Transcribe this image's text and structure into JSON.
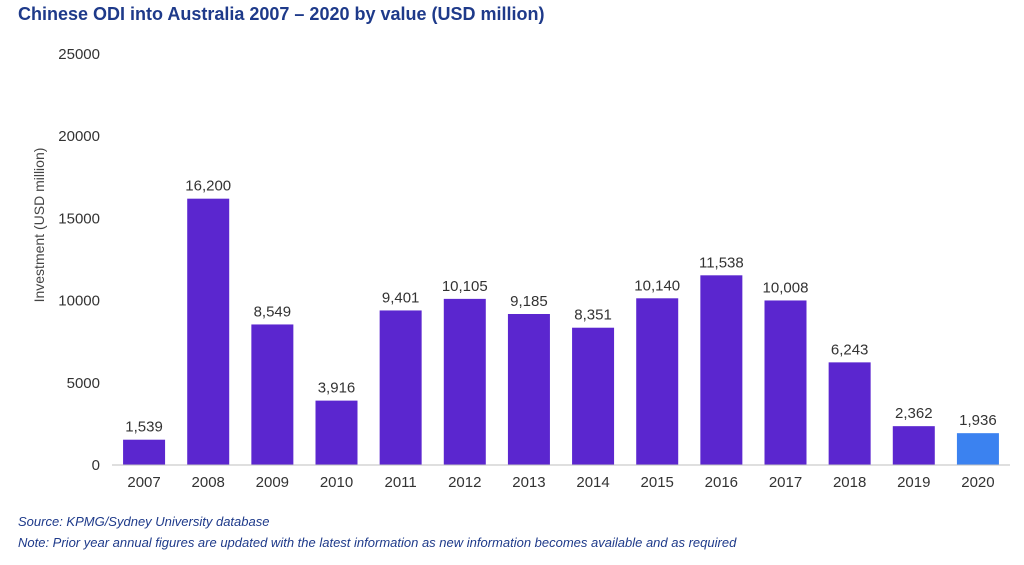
{
  "chart_data": {
    "type": "bar",
    "title": "Chinese ODI into Australia 2007 – 2020 by value (USD million)",
    "xlabel": "",
    "ylabel": "Investment (USD million)",
    "ylim": [
      0,
      25000
    ],
    "yticks": [
      "0",
      "5000",
      "10000",
      "15000",
      "20000",
      "25000"
    ],
    "categories": [
      "2007",
      "2008",
      "2009",
      "2010",
      "2011",
      "2012",
      "2013",
      "2014",
      "2015",
      "2016",
      "2017",
      "2018",
      "2019",
      "2020"
    ],
    "values": [
      1539,
      16200,
      8549,
      3916,
      9401,
      10105,
      9185,
      8351,
      10140,
      11538,
      10008,
      6243,
      2362,
      1936
    ],
    "value_labels": [
      "1,539",
      "16,200",
      "8,549",
      "3,916",
      "9,401",
      "10,105",
      "9,185",
      "8,351",
      "10,140",
      "11,538",
      "10,008",
      "6,243",
      "2,362",
      "1,936"
    ],
    "colors": {
      "bar": "#5b26cf",
      "bar_highlight": "#3b82f0",
      "title": "#1e3a8a",
      "axis": "#bfbfbf"
    },
    "highlight_index": 13,
    "grid": false,
    "legend": "none"
  },
  "footer": {
    "source": "Source: KPMG/Sydney University database",
    "note": "Note: Prior year annual figures are updated with the latest information as new information becomes available and as required"
  }
}
